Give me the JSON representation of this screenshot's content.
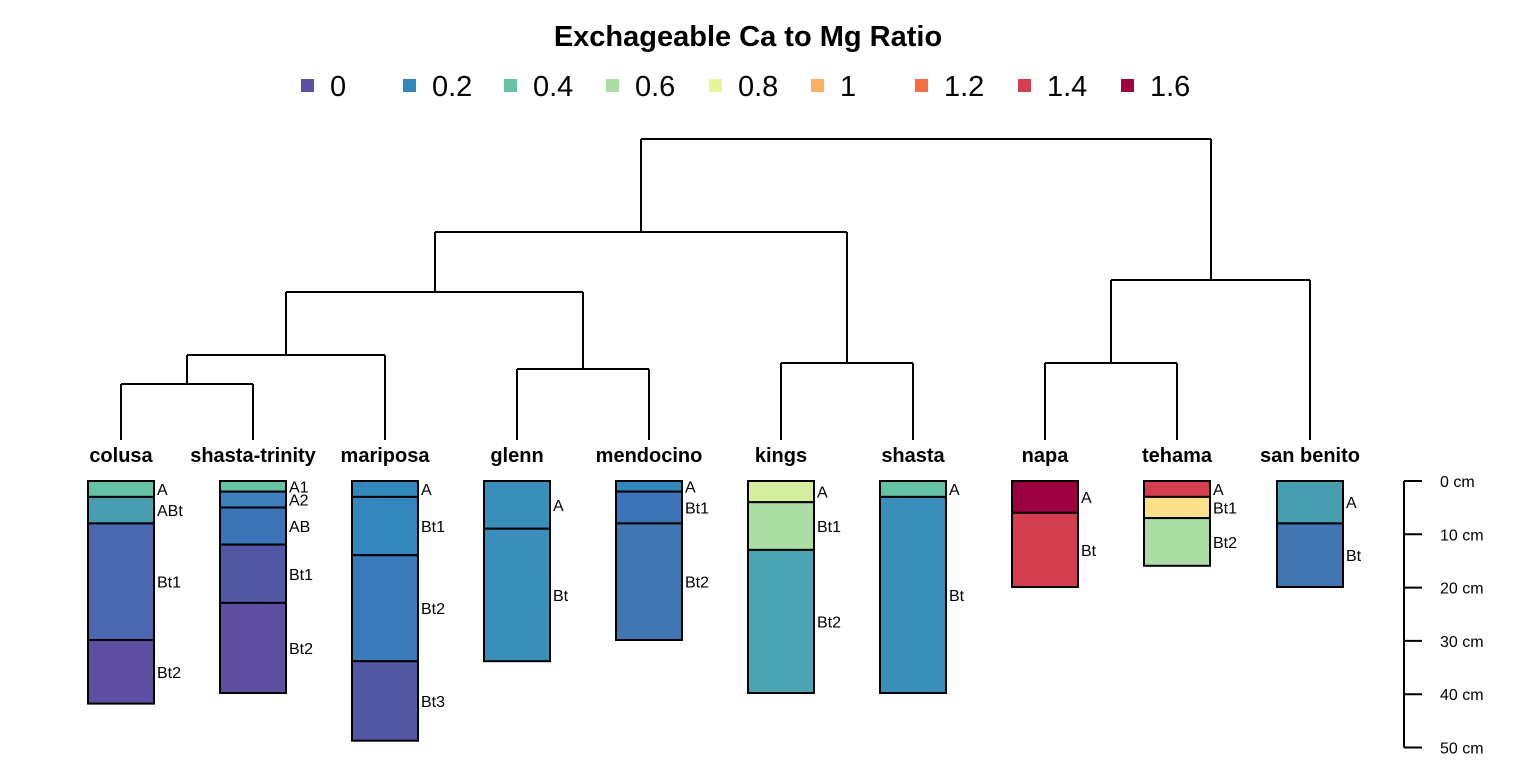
{
  "chart_data": {
    "type": "soil_profile_dendrogram",
    "title": "Exchageable Ca to Mg Ratio",
    "legend": {
      "position": "top",
      "entries": [
        {
          "label": "0",
          "color": "#5E4FA2"
        },
        {
          "label": "0.2",
          "color": "#3288BD"
        },
        {
          "label": "0.4",
          "color": "#66C2A5"
        },
        {
          "label": "0.6",
          "color": "#ABDDA4"
        },
        {
          "label": "0.8",
          "color": "#E6F598"
        },
        {
          "label": "1",
          "color": "#FDAE61"
        },
        {
          "label": "1.2",
          "color": "#F46D43"
        },
        {
          "label": "1.4",
          "color": "#D53E4F"
        },
        {
          "label": "1.6",
          "color": "#9E0142"
        }
      ]
    },
    "depth_axis": {
      "unit": "cm",
      "ticks": [
        {
          "value": 0,
          "label": "0 cm"
        },
        {
          "value": 10,
          "label": "10 cm"
        },
        {
          "value": 20,
          "label": "20 cm"
        },
        {
          "value": 30,
          "label": "30 cm"
        },
        {
          "value": 40,
          "label": "40 cm"
        },
        {
          "value": 50,
          "label": "50 cm"
        }
      ],
      "range": [
        0,
        50
      ]
    },
    "profiles": [
      {
        "name": "colusa",
        "horizons": [
          {
            "name": "A",
            "top": 0,
            "bottom": 3,
            "color": "#66C2A5"
          },
          {
            "name": "ABt",
            "top": 3,
            "bottom": 8,
            "color": "#479EB1"
          },
          {
            "name": "Bt1",
            "top": 8,
            "bottom": 30,
            "color": "#4A67AF"
          },
          {
            "name": "Bt2",
            "top": 30,
            "bottom": 42,
            "color": "#5E4FA2"
          }
        ]
      },
      {
        "name": "shasta-trinity",
        "horizons": [
          {
            "name": "A1",
            "top": 0,
            "bottom": 2,
            "color": "#66C2A5"
          },
          {
            "name": "A2",
            "top": 2,
            "bottom": 5,
            "color": "#3C7FBD"
          },
          {
            "name": "AB",
            "top": 5,
            "bottom": 12,
            "color": "#3D74B8"
          },
          {
            "name": "Bt1",
            "top": 12,
            "bottom": 23,
            "color": "#5058A6"
          },
          {
            "name": "Bt2",
            "top": 23,
            "bottom": 40,
            "color": "#5E4FA2"
          }
        ]
      },
      {
        "name": "mariposa",
        "horizons": [
          {
            "name": "A",
            "top": 0,
            "bottom": 3,
            "color": "#3288BD"
          },
          {
            "name": "Bt1",
            "top": 3,
            "bottom": 14,
            "color": "#3288BD"
          },
          {
            "name": "Bt2",
            "top": 14,
            "bottom": 34,
            "color": "#3A7BBB"
          },
          {
            "name": "Bt3",
            "top": 34,
            "bottom": 49,
            "color": "#5058A6"
          }
        ]
      },
      {
        "name": "glenn",
        "horizons": [
          {
            "name": "A",
            "top": 0,
            "bottom": 9,
            "color": "#3A8FBA"
          },
          {
            "name": "Bt",
            "top": 9,
            "bottom": 34,
            "color": "#3A8FBA"
          }
        ]
      },
      {
        "name": "mendocino",
        "horizons": [
          {
            "name": "A",
            "top": 0,
            "bottom": 2,
            "color": "#3288BD"
          },
          {
            "name": "Bt1",
            "top": 2,
            "bottom": 8,
            "color": "#3D74B8"
          },
          {
            "name": "Bt2",
            "top": 8,
            "bottom": 30,
            "color": "#4176B4"
          }
        ]
      },
      {
        "name": "kings",
        "horizons": [
          {
            "name": "A",
            "top": 0,
            "bottom": 4,
            "color": "#D4EEA0"
          },
          {
            "name": "Bt1",
            "top": 4,
            "bottom": 13,
            "color": "#ABDDA4"
          },
          {
            "name": "Bt2",
            "top": 13,
            "bottom": 40,
            "color": "#4AA4B3"
          }
        ]
      },
      {
        "name": "shasta",
        "horizons": [
          {
            "name": "A",
            "top": 0,
            "bottom": 3,
            "color": "#66C2A5"
          },
          {
            "name": "Bt",
            "top": 3,
            "bottom": 40,
            "color": "#3A8FBA"
          }
        ]
      },
      {
        "name": "napa",
        "horizons": [
          {
            "name": "A",
            "top": 0,
            "bottom": 6,
            "color": "#9E0142"
          },
          {
            "name": "Bt",
            "top": 6,
            "bottom": 20,
            "color": "#D53E4F"
          }
        ]
      },
      {
        "name": "tehama",
        "horizons": [
          {
            "name": "A",
            "top": 0,
            "bottom": 3,
            "color": "#D53E4F"
          },
          {
            "name": "Bt1",
            "top": 3,
            "bottom": 7,
            "color": "#FEE08B"
          },
          {
            "name": "Bt2",
            "top": 7,
            "bottom": 16,
            "color": "#ABDDA4"
          }
        ]
      },
      {
        "name": "san benito",
        "horizons": [
          {
            "name": "A",
            "top": 0,
            "bottom": 8,
            "color": "#479EB1"
          },
          {
            "name": "Bt",
            "top": 8,
            "bottom": 20,
            "color": "#4176B4"
          }
        ]
      }
    ]
  }
}
